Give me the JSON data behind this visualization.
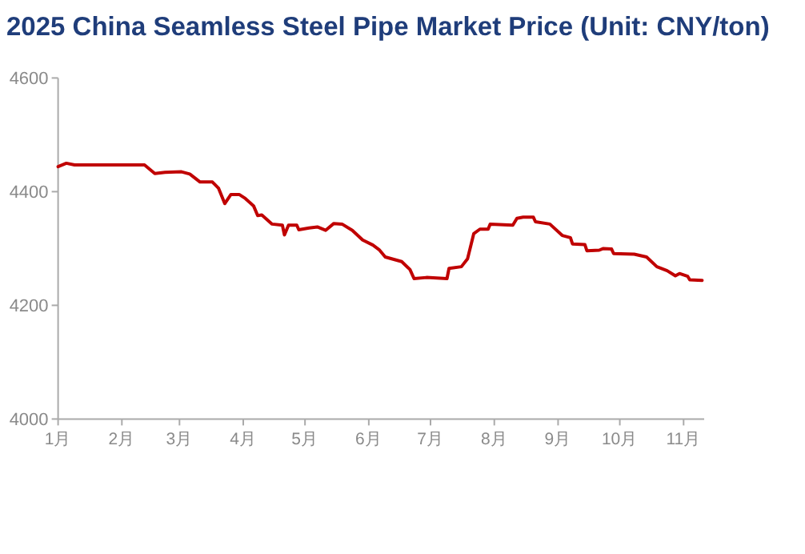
{
  "chart_data": {
    "type": "line",
    "title": "2025 China Seamless Steel Pipe Market Price (Unit: CNY/ton)",
    "x": [
      "2025-01-01",
      "2025-01-05",
      "2025-01-09",
      "2025-02-12",
      "2025-02-17",
      "2025-02-22",
      "2025-03-02",
      "2025-03-06",
      "2025-03-11",
      "2025-03-17",
      "2025-03-20",
      "2025-03-23",
      "2025-03-26",
      "2025-03-30",
      "2025-04-02",
      "2025-04-06",
      "2025-04-08",
      "2025-04-10",
      "2025-04-15",
      "2025-04-20",
      "2025-04-21",
      "2025-04-23",
      "2025-04-27",
      "2025-04-28",
      "2025-05-03",
      "2025-05-07",
      "2025-05-11",
      "2025-05-15",
      "2025-05-19",
      "2025-05-24",
      "2025-05-29",
      "2025-06-03",
      "2025-06-06",
      "2025-06-09",
      "2025-06-17",
      "2025-06-21",
      "2025-06-23",
      "2025-06-29",
      "2025-07-09",
      "2025-07-10",
      "2025-07-16",
      "2025-07-19",
      "2025-07-22",
      "2025-07-25",
      "2025-07-29",
      "2025-07-30",
      "2025-08-10",
      "2025-08-12",
      "2025-08-15",
      "2025-08-20",
      "2025-08-21",
      "2025-08-28",
      "2025-09-03",
      "2025-09-07",
      "2025-09-08",
      "2025-09-14",
      "2025-09-15",
      "2025-09-21",
      "2025-09-23",
      "2025-09-27",
      "2025-09-28",
      "2025-10-08",
      "2025-10-14",
      "2025-10-19",
      "2025-10-24",
      "2025-10-28",
      "2025-10-30",
      "2025-11-03",
      "2025-11-04",
      "2025-11-10"
    ],
    "series": [
      {
        "color": "#c00000",
        "values": [
          4444,
          4450,
          4447,
          4447,
          4432,
          4434,
          4435,
          4431,
          4417,
          4417,
          4406,
          4379,
          4395,
          4395,
          4388,
          4375,
          4358,
          4359,
          4343,
          4341,
          4324,
          4341,
          4341,
          4333,
          4336,
          4338,
          4332,
          4344,
          4343,
          4332,
          4315,
          4306,
          4298,
          4285,
          4277,
          4263,
          4247,
          4249,
          4247,
          4265,
          4268,
          4282,
          4326,
          4334,
          4334,
          4343,
          4341,
          4353,
          4355,
          4355,
          4347,
          4343,
          4323,
          4319,
          4308,
          4307,
          4296,
          4297,
          4300,
          4299,
          4291,
          4290,
          4285,
          4268,
          4261,
          4252,
          4256,
          4251,
          4245,
          4244
        ]
      }
    ],
    "xlim": [
      "2025-01-01",
      "2025-11-11"
    ],
    "xticks": [
      {
        "value": "2025-01-01",
        "label": "1月"
      },
      {
        "value": "2025-02-01",
        "label": "2月"
      },
      {
        "value": "2025-03-01",
        "label": "3月"
      },
      {
        "value": "2025-04-01",
        "label": "4月"
      },
      {
        "value": "2025-05-01",
        "label": "5月"
      },
      {
        "value": "2025-06-01",
        "label": "6月"
      },
      {
        "value": "2025-07-01",
        "label": "7月"
      },
      {
        "value": "2025-08-01",
        "label": "8月"
      },
      {
        "value": "2025-09-01",
        "label": "9月"
      },
      {
        "value": "2025-10-01",
        "label": "10月"
      },
      {
        "value": "2025-11-01",
        "label": "11月"
      }
    ],
    "ylim": [
      4000,
      4600
    ],
    "yticks": [
      4000,
      4200,
      4400,
      4600
    ],
    "grid": false,
    "marker": "none",
    "line_style": "solid"
  }
}
